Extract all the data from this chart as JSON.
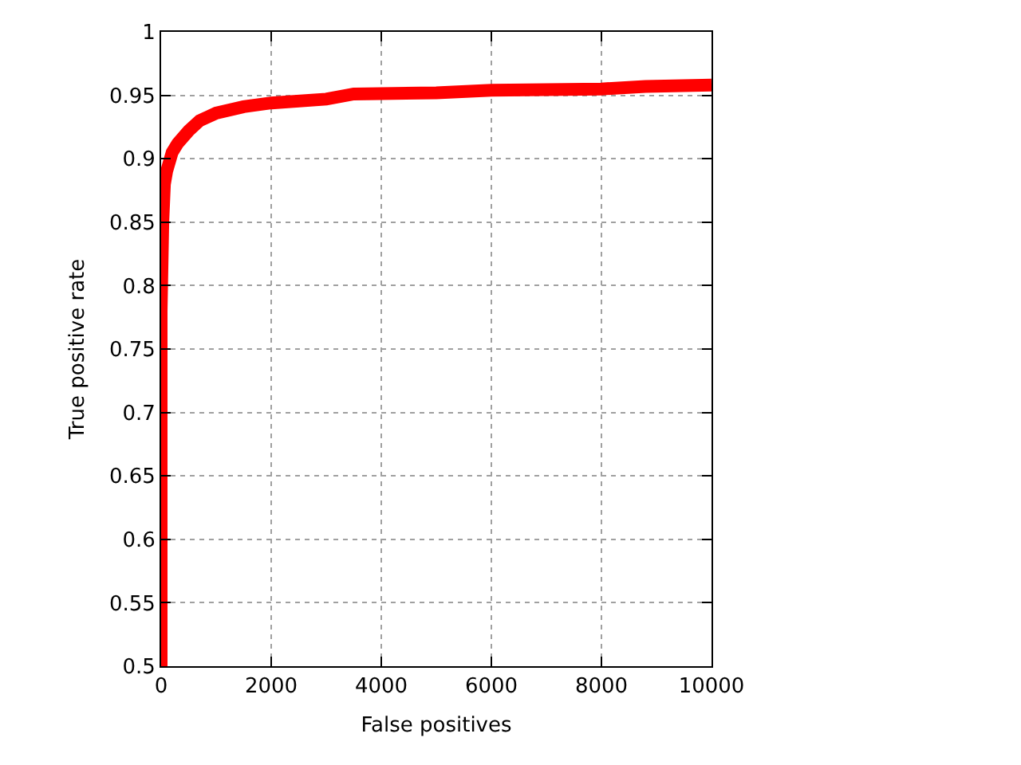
{
  "chart_data": {
    "type": "line",
    "xlabel": "False positives",
    "ylabel": "True positive rate",
    "x": [
      0,
      0,
      30,
      60,
      100,
      200,
      300,
      500,
      700,
      1000,
      1500,
      2000,
      3000,
      3500,
      5000,
      6000,
      8000,
      8800,
      10000
    ],
    "series": [
      {
        "color": "#ff0000",
        "values": [
          0.5,
          0.78,
          0.85,
          0.88,
          0.89,
          0.905,
          0.912,
          0.922,
          0.93,
          0.936,
          0.941,
          0.944,
          0.947,
          0.951,
          0.952,
          0.954,
          0.955,
          0.957,
          0.958
        ]
      }
    ],
    "xlim": [
      0,
      10000
    ],
    "xticks": [
      0,
      2000,
      4000,
      6000,
      8000,
      10000
    ],
    "ylim": [
      0.5,
      1
    ],
    "yticks": [
      0.5,
      0.55,
      0.6,
      0.65,
      0.7,
      0.75,
      0.8,
      0.85,
      0.9,
      0.95,
      1
    ],
    "grid": true,
    "marker": "none",
    "line_style": "solid"
  }
}
